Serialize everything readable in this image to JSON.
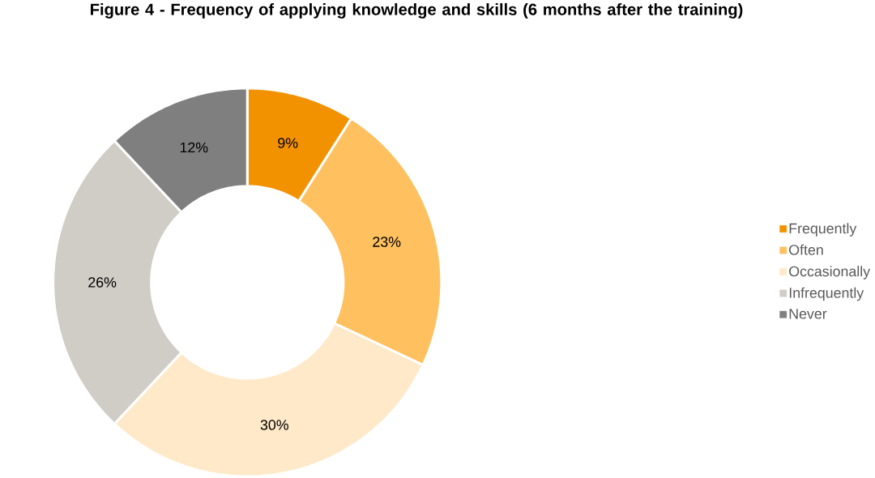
{
  "chart_data": {
    "type": "donut",
    "title": "Figure 4 - Frequency of applying knowledge and skills (6 months after the training)",
    "categories": [
      "Frequently",
      "Often",
      "Occasionally",
      "Infrequently",
      "Never"
    ],
    "values": [
      9,
      23,
      30,
      26,
      12
    ],
    "colors": [
      "#f39200",
      "#ffc060",
      "#ffe9c8",
      "#d0ccc6",
      "#7f7f7f"
    ],
    "value_labels": [
      "9%",
      "23%",
      "30%",
      "26%",
      "12%"
    ],
    "legend": "right"
  }
}
